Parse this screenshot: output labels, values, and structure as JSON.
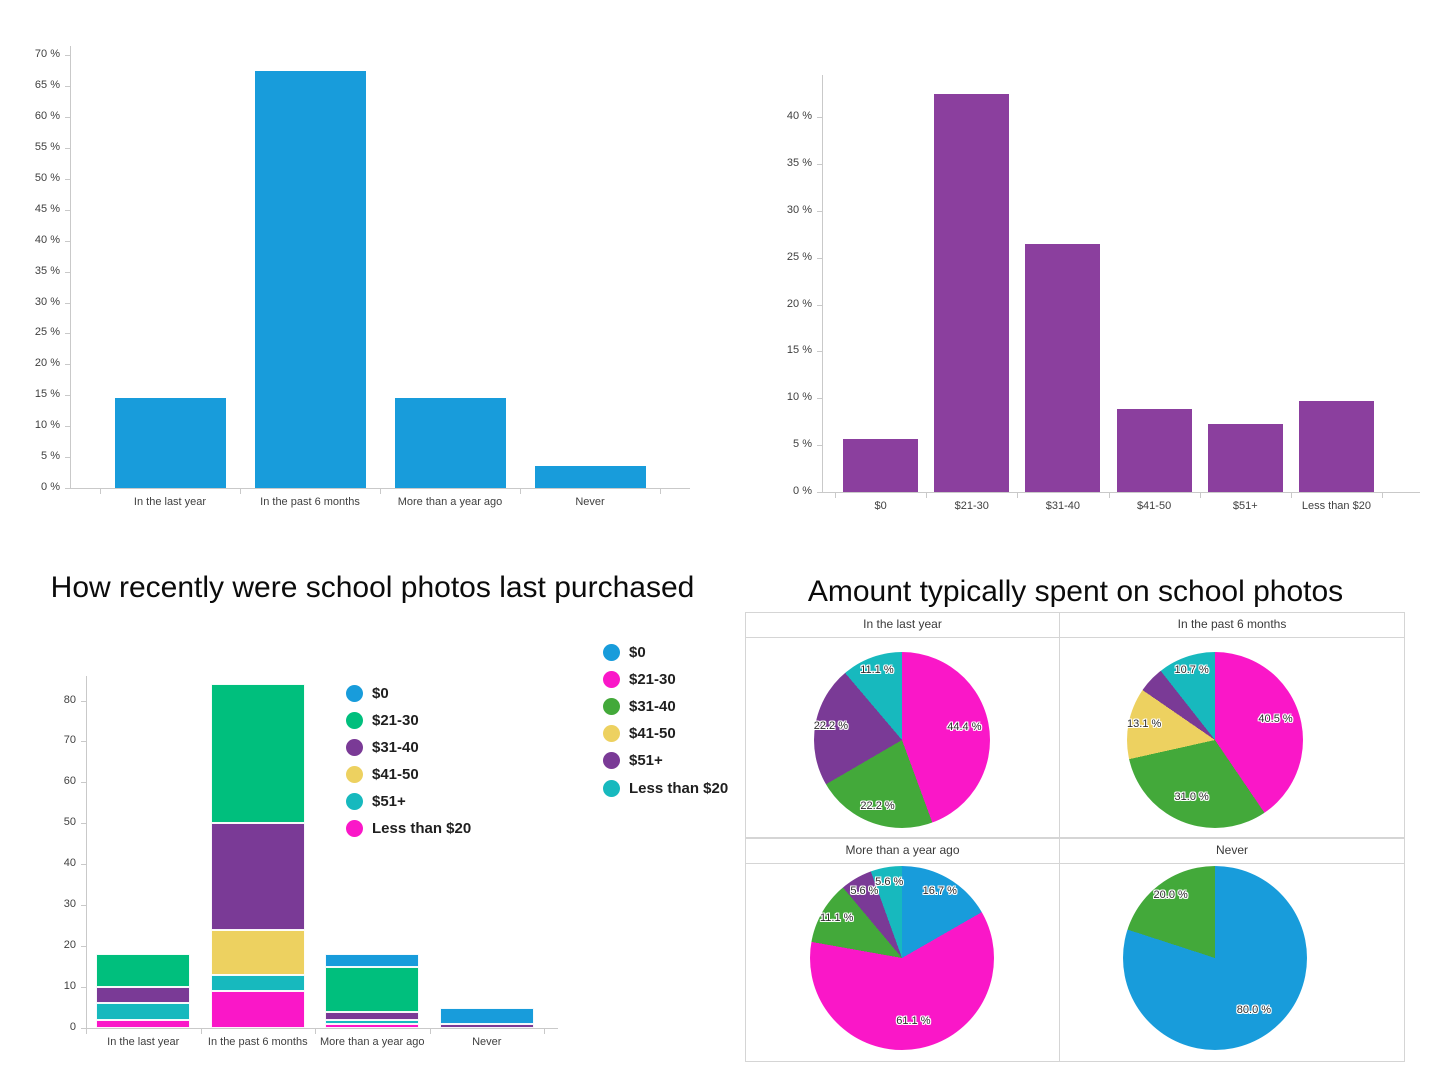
{
  "titles": {
    "recency": "How recently were school photos last purchased",
    "amount": "Amount typically spent on school photos"
  },
  "colors": {
    "azure_blue": "#189CDB",
    "bar_purple": "#8B3F9E",
    "emerald": "#00BF7D",
    "deep_purple": "#7A3A96",
    "yellow": "#EDD160",
    "teal": "#17B9BE",
    "magenta": "#FA17C8",
    "pie_green": "#43A93A",
    "axis_gray": "#C9C9C9"
  },
  "chart_data": [
    {
      "id": "recency-bar",
      "type": "bar",
      "title": "",
      "categories": [
        "In the last year",
        "In the past 6 months",
        "More than a year ago",
        "Never"
      ],
      "values": [
        14.5,
        67.5,
        14.5,
        3.6
      ],
      "bar_color": "#189CDB",
      "y_ticks": [
        0,
        5,
        10,
        15,
        20,
        25,
        30,
        35,
        40,
        45,
        50,
        55,
        60,
        65,
        70
      ],
      "y_tick_suffix": " %",
      "ylim": [
        0,
        71.5
      ],
      "grid": false,
      "legend_position": "none"
    },
    {
      "id": "amount-bar",
      "type": "bar",
      "title": "",
      "categories": [
        "$0",
        "$21-30",
        "$31-40",
        "$41-50",
        "$51+",
        "Less than $20"
      ],
      "values": [
        5.7,
        42.5,
        26.5,
        8.9,
        7.3,
        9.7
      ],
      "bar_color": "#8B3F9E",
      "y_ticks": [
        0,
        5,
        10,
        15,
        20,
        25,
        30,
        35,
        40
      ],
      "y_tick_suffix": " %",
      "ylim": [
        0,
        44.5
      ],
      "grid": false,
      "legend_position": "none"
    },
    {
      "id": "recency-stacked-bar",
      "type": "bar",
      "stacked": true,
      "title": "How recently were school photos last purchased",
      "categories": [
        "In the last year",
        "In the past 6 months",
        "More than a year ago",
        "Never"
      ],
      "series": [
        {
          "name": "$0",
          "color": "#189CDB",
          "values": [
            0,
            0,
            3,
            4
          ]
        },
        {
          "name": "$21-30",
          "color": "#00BF7D",
          "values": [
            8,
            34,
            11,
            0
          ]
        },
        {
          "name": "$31-40",
          "color": "#7A3A96",
          "values": [
            4,
            26,
            2,
            1
          ]
        },
        {
          "name": "$41-50",
          "color": "#EDD160",
          "values": [
            0,
            11,
            0,
            0
          ]
        },
        {
          "name": "$51+",
          "color": "#17B9BE",
          "values": [
            4,
            4,
            1,
            0
          ]
        },
        {
          "name": "Less than $20",
          "color": "#FA17C8",
          "values": [
            2,
            9,
            1,
            0
          ]
        }
      ],
      "stack_order_bottom_to_top": [
        "Less than $20",
        "$51+",
        "$41-50",
        "$31-40",
        "$21-30",
        "$0"
      ],
      "y_ticks": [
        0,
        10,
        20,
        30,
        40,
        50,
        60,
        70,
        80
      ],
      "y_tick_suffix": "",
      "ylim": [
        0,
        86
      ],
      "grid": false,
      "legend_position": "right"
    },
    {
      "id": "amount-pies",
      "type": "pie",
      "title": "Amount typically spent on school photos",
      "legend": [
        {
          "label": "$0",
          "color": "#189CDB"
        },
        {
          "label": "$21-30",
          "color": "#FA17C8"
        },
        {
          "label": "$31-40",
          "color": "#43A93A"
        },
        {
          "label": "$41-50",
          "color": "#EDD160"
        },
        {
          "label": "$51+",
          "color": "#7A3A96"
        },
        {
          "label": "Less than $20",
          "color": "#17B9BE"
        }
      ],
      "pies": [
        {
          "title": "In the last year",
          "slices": [
            {
              "label": "$21-30",
              "pct": 44.4,
              "color": "#FA17C8",
              "text": "44.4 %"
            },
            {
              "label": "$31-40",
              "pct": 22.2,
              "color": "#43A93A",
              "text": "22.2 %"
            },
            {
              "label": "$51+",
              "pct": 22.2,
              "color": "#7A3A96",
              "text": "22.2 %"
            },
            {
              "label": "Less than $20",
              "pct": 11.1,
              "color": "#17B9BE",
              "text": "11.1 %"
            }
          ]
        },
        {
          "title": "In the past 6 months",
          "slices": [
            {
              "label": "$21-30",
              "pct": 40.5,
              "color": "#FA17C8",
              "text": "40.5 %"
            },
            {
              "label": "$31-40",
              "pct": 31.0,
              "color": "#43A93A",
              "text": "31.0 %"
            },
            {
              "label": "$41-50",
              "pct": 13.1,
              "color": "#EDD160",
              "text": "13.1 %"
            },
            {
              "label": "$51+",
              "pct": 4.8,
              "color": "#7A3A96",
              "text": ""
            },
            {
              "label": "Less than $20",
              "pct": 10.7,
              "color": "#17B9BE",
              "text": "10.7 %"
            }
          ]
        },
        {
          "title": "More than a year ago",
          "slices": [
            {
              "label": "$0",
              "pct": 16.7,
              "color": "#189CDB",
              "text": "16.7 %"
            },
            {
              "label": "$21-30",
              "pct": 61.1,
              "color": "#FA17C8",
              "text": "61.1 %"
            },
            {
              "label": "$31-40",
              "pct": 11.1,
              "color": "#43A93A",
              "text": "11.1 %"
            },
            {
              "label": "$51+",
              "pct": 5.6,
              "color": "#7A3A96",
              "text": "5.6 %"
            },
            {
              "label": "Less than $20",
              "pct": 5.6,
              "color": "#17B9BE",
              "text": "5.6 %"
            }
          ]
        },
        {
          "title": "Never",
          "slices": [
            {
              "label": "$0",
              "pct": 80.0,
              "color": "#189CDB",
              "text": "80.0 %"
            },
            {
              "label": "$31-40",
              "pct": 20.0,
              "color": "#43A93A",
              "text": "20.0 %"
            }
          ]
        }
      ]
    }
  ]
}
